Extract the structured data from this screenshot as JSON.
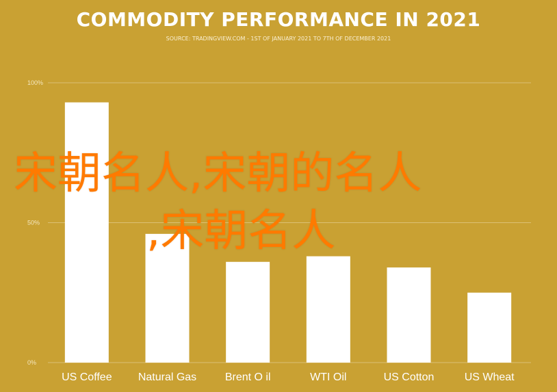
{
  "chart_data": {
    "type": "bar",
    "title": "COMMODITY PERFORMANCE IN 2021",
    "subtitle": "SOURCE: TRADINGVIEW.COM - 1ST OF JANUARY 2021 TO 7TH OF DECEMBER 2021",
    "categories": [
      "US Coffee",
      "Natural Gas",
      "Brent O il",
      "WTI Oil",
      "US Cotton",
      "US Wheat"
    ],
    "values": [
      93,
      46,
      36,
      38,
      34,
      25
    ],
    "ylim": [
      0,
      100
    ],
    "yticks": [
      {
        "value": 0,
        "label": "0%"
      },
      {
        "value": 50,
        "label": "50%"
      },
      {
        "value": 100,
        "label": "100%"
      }
    ],
    "grid": true,
    "legend": "none"
  },
  "watermark": {
    "line1": "宋朝名人,宋朝的名人",
    "line2": ",宋朝名人"
  },
  "colors": {
    "background": "#c9a133",
    "bar": "#ffffff",
    "grid": "#dcc074",
    "watermark": "#ff7a00"
  }
}
